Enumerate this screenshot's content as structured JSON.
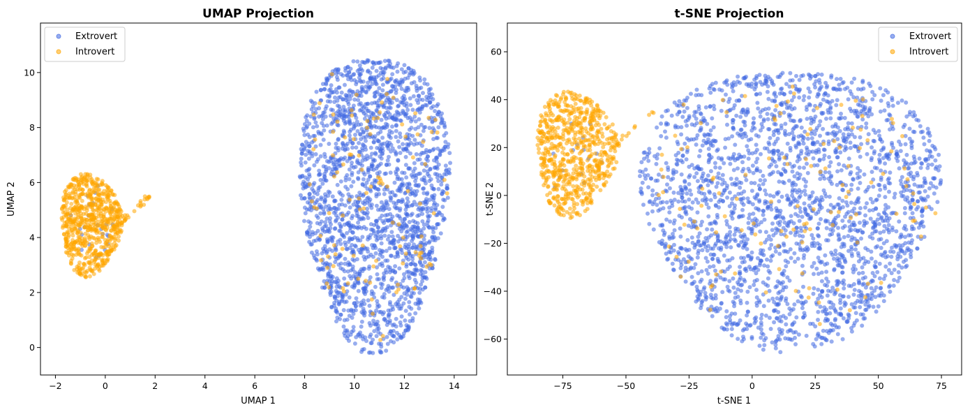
{
  "chart_data": [
    {
      "type": "scatter",
      "title": "UMAP Projection",
      "xlabel": "UMAP 1",
      "ylabel": "UMAP 2",
      "xlim": [
        -2.6,
        14.9
      ],
      "ylim": [
        -1.0,
        11.8
      ],
      "xticks": [
        -2,
        0,
        2,
        4,
        6,
        8,
        10,
        12,
        14
      ],
      "yticks": [
        0,
        2,
        4,
        6,
        8,
        10
      ],
      "grid": false,
      "legend": {
        "position": "top-left",
        "entries": [
          "Extrovert",
          "Introvert"
        ]
      },
      "series": [
        {
          "name": "Extrovert",
          "color": "#4169e1",
          "clusters": [
            {
              "shape": "blob",
              "center": [
                10.8,
                5.5
              ],
              "rx": 3.2,
              "ry": 5.8,
              "n": 2100
            },
            {
              "shape": "blob",
              "center": [
                -0.5,
                4.6
              ],
              "rx": 1.0,
              "ry": 1.6,
              "n": 25
            }
          ]
        },
        {
          "name": "Introvert",
          "color": "#ffa500",
          "clusters": [
            {
              "shape": "blob",
              "center": [
                -0.6,
                4.5
              ],
              "rx": 1.3,
              "ry": 2.0,
              "n": 700
            },
            {
              "shape": "line",
              "from": [
                0.6,
                4.5
              ],
              "to": [
                1.9,
                5.6
              ],
              "n": 25
            },
            {
              "shape": "blob",
              "center": [
                10.8,
                5.5
              ],
              "rx": 3.0,
              "ry": 5.6,
              "n": 110
            }
          ]
        }
      ]
    },
    {
      "type": "scatter",
      "title": "t-SNE Projection",
      "xlabel": "t-SNE 1",
      "ylabel": "t-SNE 2",
      "xlim": [
        -97,
        83
      ],
      "ylim": [
        -75,
        72
      ],
      "xticks": [
        -75,
        -50,
        -25,
        0,
        25,
        50,
        75
      ],
      "yticks": [
        -60,
        -40,
        -20,
        0,
        20,
        40,
        60
      ],
      "grid": false,
      "legend": {
        "position": "top-right",
        "entries": [
          "Extrovert",
          "Introvert"
        ]
      },
      "series": [
        {
          "name": "Extrovert",
          "color": "#4169e1",
          "clusters": [
            {
              "shape": "blob",
              "center": [
                15,
                -3
              ],
              "rx": 63,
              "ry": 63,
              "n": 2400
            },
            {
              "shape": "blob",
              "center": [
                -70,
                15
              ],
              "rx": 15,
              "ry": 25,
              "n": 15
            }
          ]
        },
        {
          "name": "Introvert",
          "color": "#ffa500",
          "clusters": [
            {
              "shape": "blob",
              "center": [
                -70,
                18
              ],
              "rx": 17,
              "ry": 28,
              "n": 700
            },
            {
              "shape": "line",
              "from": [
                -55,
                20
              ],
              "to": [
                -38,
                36
              ],
              "n": 15
            },
            {
              "shape": "blob",
              "center": [
                15,
                -3
              ],
              "rx": 60,
              "ry": 60,
              "n": 120
            }
          ]
        }
      ]
    }
  ]
}
